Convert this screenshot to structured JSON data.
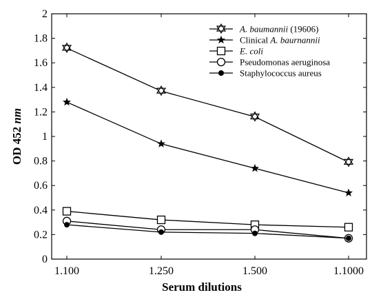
{
  "chart_data": {
    "type": "line",
    "xlabel": "Serum dilutions",
    "ylabel": "OD 452 nm",
    "ylabel_parts": {
      "prefix": "OD 452 ",
      "unit": "nm"
    },
    "ylim": [
      0,
      2
    ],
    "y_ticks": [
      "0",
      "0.2",
      "0.4",
      "0.6",
      "0.8",
      "1",
      "1.2",
      "1.4",
      "1.6",
      "1.8",
      "2"
    ],
    "categories": [
      "1.100",
      "1.250",
      "1.500",
      "1.1000"
    ],
    "grid": false,
    "legend_position": "top-right",
    "series": [
      {
        "name": "A. baumannii (19606)",
        "name_main": "A. baumannii",
        "name_suffix": " (19606)",
        "italic": "main",
        "marker": "star-triangle-down",
        "values": [
          1.72,
          1.37,
          1.16,
          0.79
        ]
      },
      {
        "name": "Clinical A. baurnannii",
        "name_prefix": "Clinical ",
        "name_main": "A. baurnannii",
        "italic": "main",
        "marker": "star-filled",
        "values": [
          1.28,
          0.94,
          0.74,
          0.54
        ]
      },
      {
        "name": "E. coli",
        "name_main": "E. coli",
        "italic": "all",
        "marker": "square-open",
        "values": [
          0.39,
          0.32,
          0.28,
          0.26
        ]
      },
      {
        "name": "Pseudomonas aeruginosa",
        "name_main": "Pseudomonas aeruginosa",
        "italic": "none",
        "marker": "circle-open",
        "values": [
          0.31,
          0.24,
          0.24,
          0.17
        ]
      },
      {
        "name": "Staphylococcus aureus",
        "name_main": "Staphylococcus aureus",
        "italic": "none",
        "marker": "circle-filled",
        "values": [
          0.28,
          0.22,
          0.21,
          0.17
        ]
      }
    ]
  }
}
